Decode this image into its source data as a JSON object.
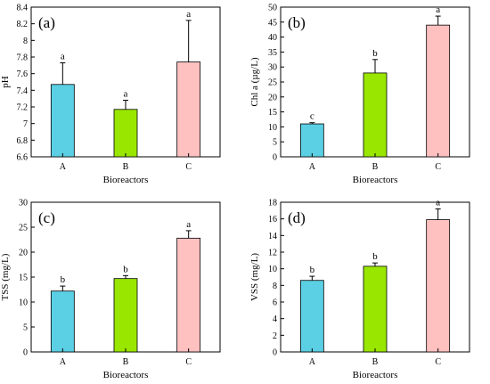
{
  "chart_data": [
    {
      "panel": "(a)",
      "type": "bar",
      "xlabel": "Bioreactors",
      "ylabel": "pH",
      "categories": [
        "A",
        "B",
        "C"
      ],
      "values": [
        7.47,
        7.17,
        7.74
      ],
      "errors": [
        0.26,
        0.11,
        0.5
      ],
      "significance": [
        "a",
        "a",
        "a"
      ],
      "ylim": [
        6.6,
        8.4
      ],
      "yticks": [
        6.6,
        6.8,
        7,
        7.2,
        7.4,
        7.6,
        7.8,
        8,
        8.2,
        8.4
      ],
      "colors": [
        "#5bcfe3",
        "#99e600",
        "#ffc0c0"
      ]
    },
    {
      "panel": "(b)",
      "type": "bar",
      "xlabel": "Bioreactors",
      "ylabel": "Chl a (µg/L)",
      "categories": [
        "A",
        "B",
        "C"
      ],
      "values": [
        11.0,
        28.0,
        44.0
      ],
      "errors": [
        0.4,
        4.5,
        3.0
      ],
      "significance": [
        "c",
        "b",
        "a"
      ],
      "ylim": [
        0,
        50
      ],
      "yticks": [
        0,
        5,
        10,
        15,
        20,
        25,
        30,
        35,
        40,
        45,
        50
      ],
      "colors": [
        "#5bcfe3",
        "#99e600",
        "#ffc0c0"
      ]
    },
    {
      "panel": "(c)",
      "type": "bar",
      "xlabel": "Bioreactors",
      "ylabel": "TSS (mg/L)",
      "categories": [
        "A",
        "B",
        "C"
      ],
      "values": [
        12.2,
        14.7,
        22.8
      ],
      "errors": [
        1.0,
        0.6,
        1.5
      ],
      "significance": [
        "b",
        "b",
        "a"
      ],
      "ylim": [
        0,
        30
      ],
      "yticks": [
        0,
        5,
        10,
        15,
        20,
        25,
        30
      ],
      "colors": [
        "#5bcfe3",
        "#99e600",
        "#ffc0c0"
      ]
    },
    {
      "panel": "(d)",
      "type": "bar",
      "xlabel": "Bioreactors",
      "ylabel": "VSS (mg/L)",
      "categories": [
        "A",
        "B",
        "C"
      ],
      "values": [
        8.6,
        10.3,
        15.9
      ],
      "errors": [
        0.5,
        0.4,
        1.3
      ],
      "significance": [
        "b",
        "b",
        "a"
      ],
      "ylim": [
        0,
        18
      ],
      "yticks": [
        0,
        2,
        4,
        6,
        8,
        10,
        12,
        14,
        16,
        18
      ],
      "colors": [
        "#5bcfe3",
        "#99e600",
        "#ffc0c0"
      ]
    }
  ]
}
